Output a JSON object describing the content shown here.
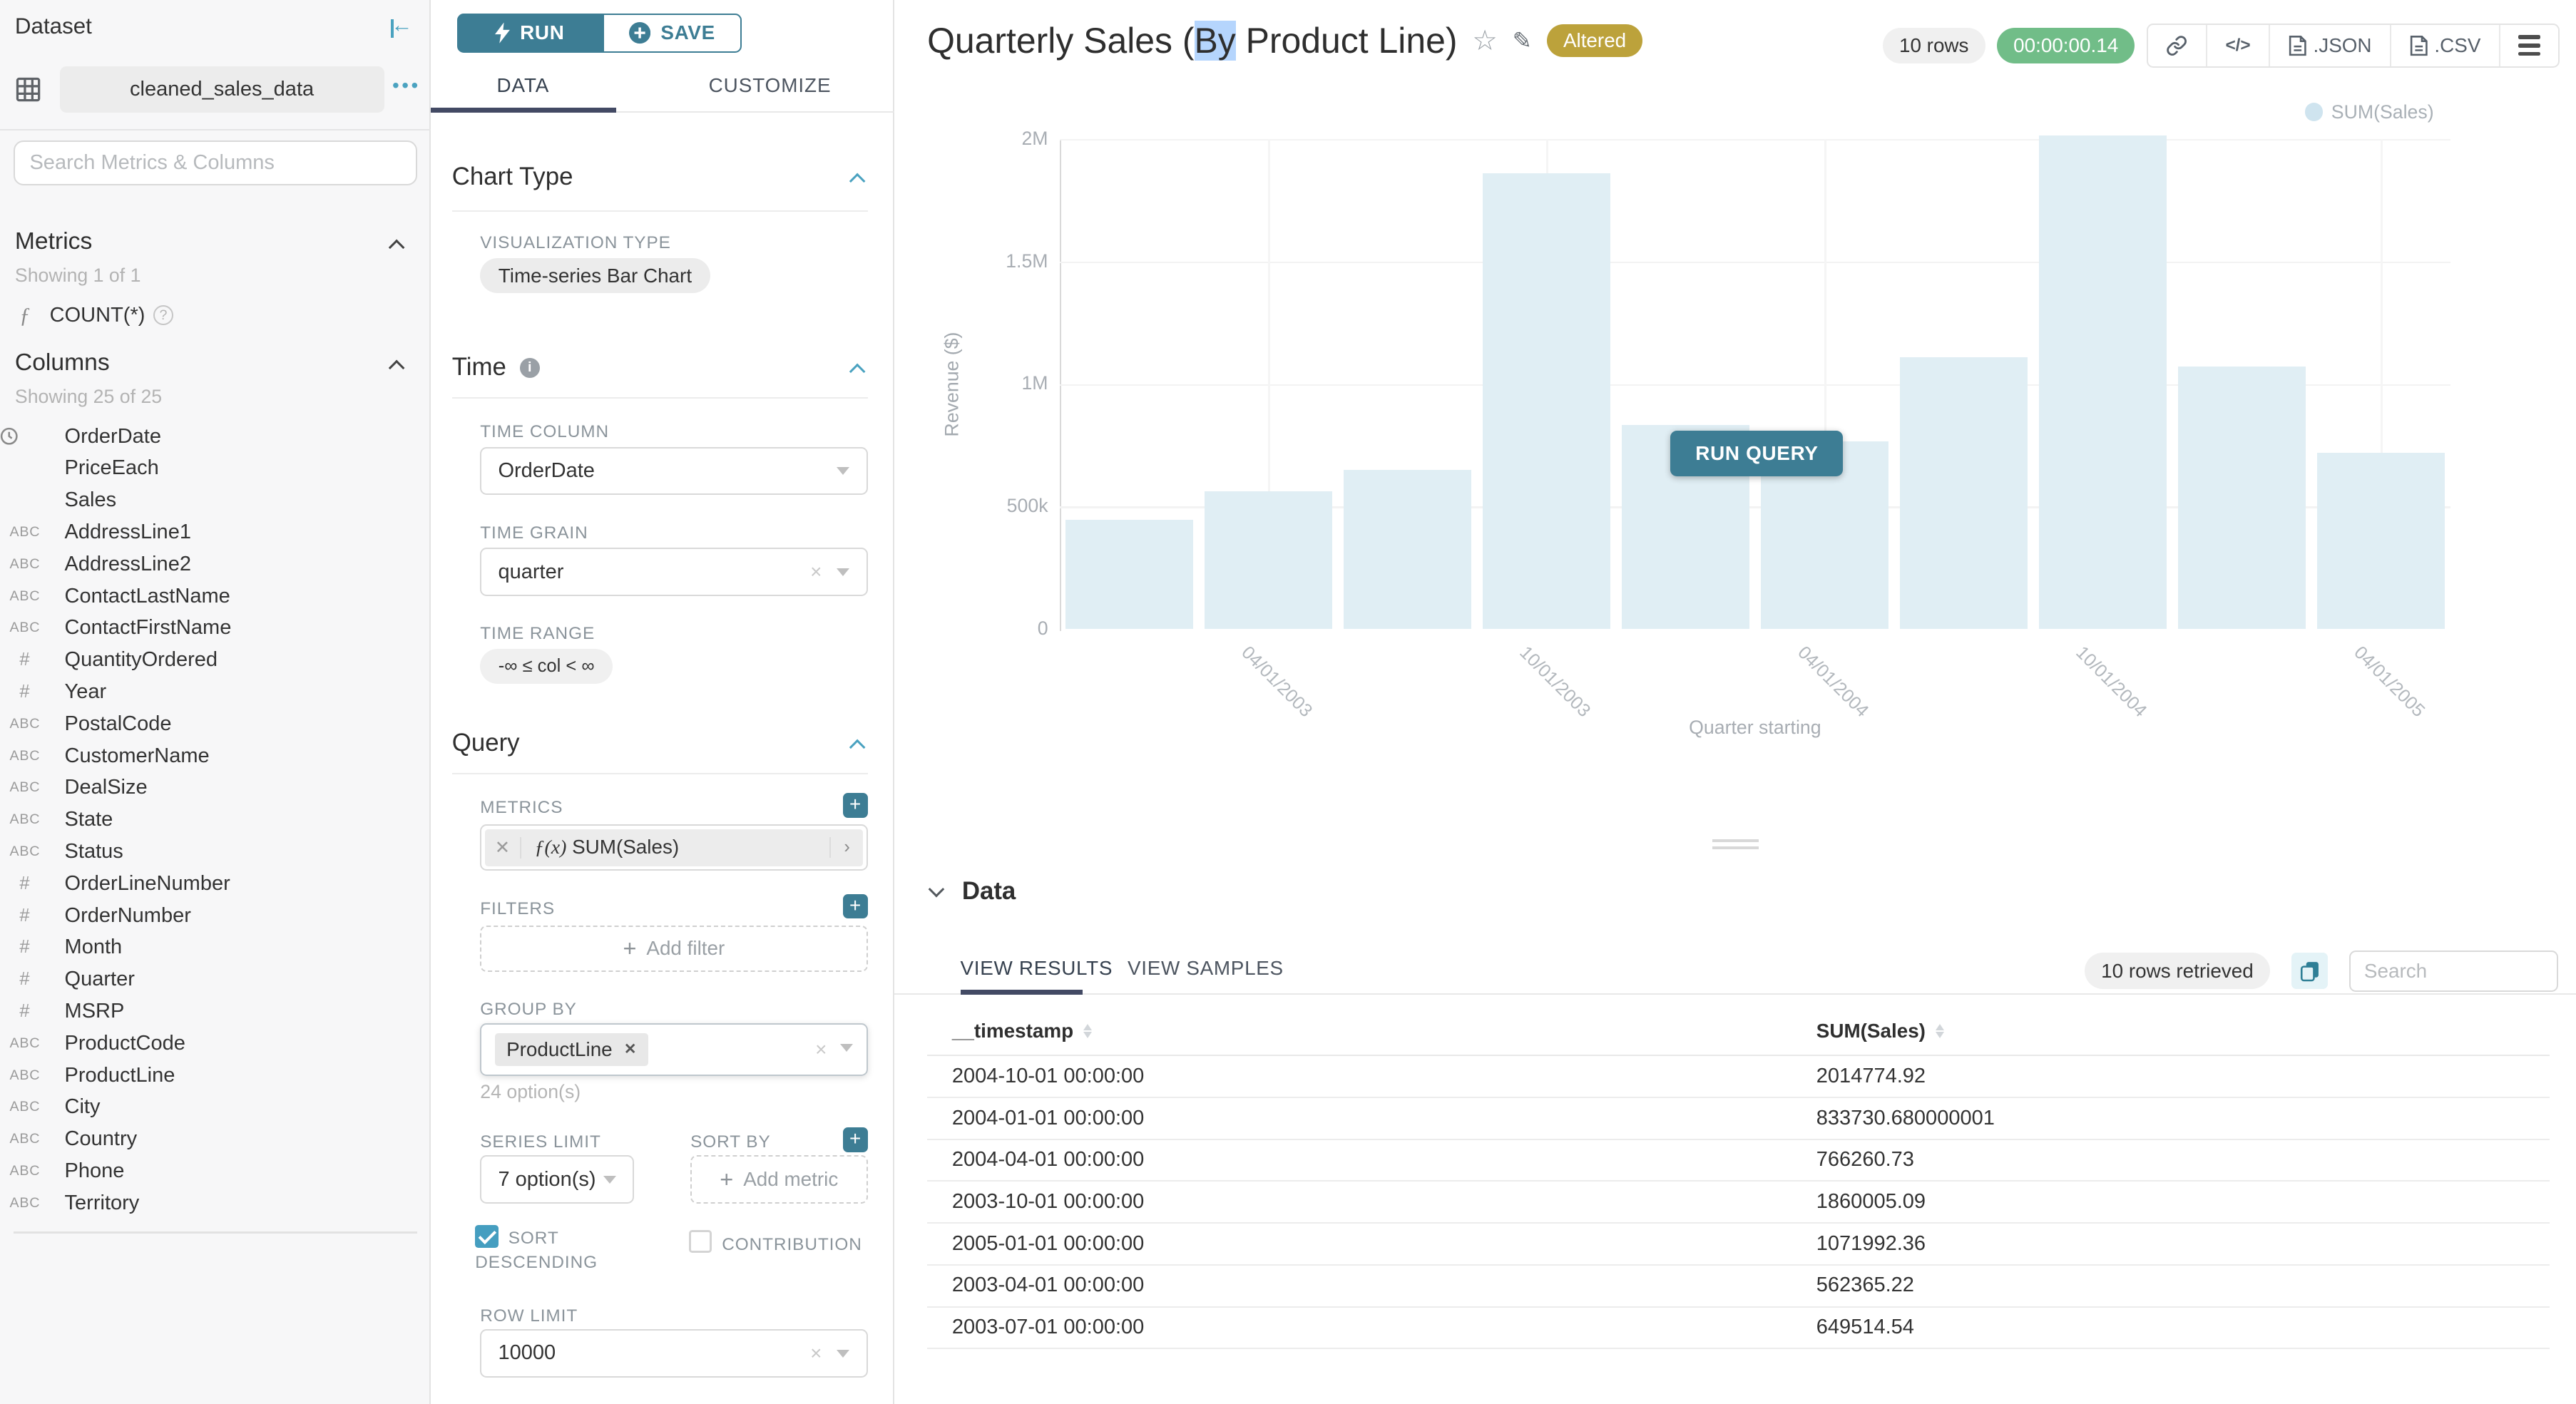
{
  "colors": {
    "accent_teal": "#3d7d94",
    "link_teal": "#4aa2c0",
    "tab_underline": "#434a64",
    "bar_fill": "#e0eef4",
    "legend_dot": "#cfe4ef",
    "altered_badge": "#bca23b",
    "timer_green": "#71bd88",
    "selection_highlight": "#b5d5fd",
    "checkbox_checked": "#459ec0"
  },
  "sidebar": {
    "title": "Dataset",
    "dataset_name": "cleaned_sales_data",
    "more_menu": "•••",
    "search_placeholder": "Search Metrics & Columns",
    "metrics": {
      "title": "Metrics",
      "showing": "Showing 1 of 1",
      "items": [
        {
          "icon": "function",
          "name": "COUNT(*)"
        }
      ]
    },
    "columns": {
      "title": "Columns",
      "showing": "Showing 25 of 25",
      "items": [
        {
          "icon": "clock",
          "name": "OrderDate"
        },
        {
          "icon": "",
          "name": "PriceEach"
        },
        {
          "icon": "",
          "name": "Sales"
        },
        {
          "icon": "abc",
          "name": "AddressLine1"
        },
        {
          "icon": "abc",
          "name": "AddressLine2"
        },
        {
          "icon": "abc",
          "name": "ContactLastName"
        },
        {
          "icon": "abc",
          "name": "ContactFirstName"
        },
        {
          "icon": "#",
          "name": "QuantityOrdered"
        },
        {
          "icon": "#",
          "name": "Year"
        },
        {
          "icon": "abc",
          "name": "PostalCode"
        },
        {
          "icon": "abc",
          "name": "CustomerName"
        },
        {
          "icon": "abc",
          "name": "DealSize"
        },
        {
          "icon": "abc",
          "name": "State"
        },
        {
          "icon": "abc",
          "name": "Status"
        },
        {
          "icon": "#",
          "name": "OrderLineNumber"
        },
        {
          "icon": "#",
          "name": "OrderNumber"
        },
        {
          "icon": "#",
          "name": "Month"
        },
        {
          "icon": "#",
          "name": "Quarter"
        },
        {
          "icon": "#",
          "name": "MSRP"
        },
        {
          "icon": "abc",
          "name": "ProductCode"
        },
        {
          "icon": "abc",
          "name": "ProductLine"
        },
        {
          "icon": "abc",
          "name": "City"
        },
        {
          "icon": "abc",
          "name": "Country"
        },
        {
          "icon": "abc",
          "name": "Phone"
        },
        {
          "icon": "abc",
          "name": "Territory"
        }
      ]
    }
  },
  "controls": {
    "run_label": "RUN",
    "save_label": "SAVE",
    "tabs": {
      "data": "DATA",
      "customize": "CUSTOMIZE"
    },
    "chart_type": {
      "title": "Chart Type",
      "viz_label": "VISUALIZATION TYPE",
      "viz_value": "Time-series Bar Chart"
    },
    "time": {
      "title": "Time",
      "column_label": "TIME COLUMN",
      "column_value": "OrderDate",
      "grain_label": "TIME GRAIN",
      "grain_value": "quarter",
      "range_label": "TIME RANGE",
      "range_value": "-∞ ≤ col < ∞"
    },
    "query": {
      "title": "Query",
      "metrics_label": "METRICS",
      "metric_fn": "ƒ(x)",
      "metric_value": "SUM(Sales)",
      "filters_label": "FILTERS",
      "add_filter_label": "Add filter",
      "group_by_label": "GROUP BY",
      "group_by_value": "ProductLine",
      "group_by_hint": "24 option(s)",
      "series_limit_label": "SERIES LIMIT",
      "series_limit_value": "7 option(s)",
      "sort_by_label": "SORT BY",
      "add_metric_label": "Add metric",
      "sort_descending_label": "SORT DESCENDING",
      "contribution_label": "CONTRIBUTION",
      "row_limit_label": "ROW LIMIT",
      "row_limit_value": "10000"
    }
  },
  "header": {
    "title_before": "Quarterly Sales (",
    "title_highlight": "By",
    "title_after": " Product Line)",
    "badge": "Altered",
    "rows_pill": "10 rows",
    "timer": "00:00:00.14",
    "json_label": ".JSON",
    "csv_label": ".CSV"
  },
  "canvas": {
    "legend": "SUM(Sales)",
    "ylabel": "Revenue ($)",
    "xlabel": "Quarter starting",
    "run_query_label": "RUN QUERY"
  },
  "chart_data": {
    "type": "bar",
    "title": "Quarterly Sales (By Product Line)",
    "series_name": "SUM(Sales)",
    "x": [
      "2003-01-01",
      "2003-04-01",
      "2003-07-01",
      "2003-10-01",
      "2004-01-01",
      "2004-04-01",
      "2004-07-01",
      "2004-10-01",
      "2005-01-01",
      "2005-04-01"
    ],
    "values": [
      445094.69,
      562365.22,
      649514.54,
      1860005.09,
      833730.68,
      766260.73,
      1109396.27,
      2014774.92,
      1071992.36,
      719494.35
    ],
    "xlabel": "Quarter starting",
    "ylabel": "Revenue ($)",
    "ylim": [
      0,
      2000000
    ],
    "y_tick_labels": [
      "2M",
      "1.5M",
      "1M",
      "500k",
      "0"
    ],
    "x_tick_labels": [
      "04/01/2003",
      "10/01/2003",
      "04/01/2004",
      "10/01/2004",
      "04/01/2005"
    ],
    "legend_position": "top-right",
    "grid": true
  },
  "data_panel": {
    "title": "Data",
    "tabs": {
      "results": "VIEW RESULTS",
      "samples": "VIEW SAMPLES"
    },
    "rows_pill": "10 rows retrieved",
    "search_placeholder": "Search",
    "table": {
      "columns": [
        "__timestamp",
        "SUM(Sales)"
      ],
      "rows": [
        [
          "2004-10-01 00:00:00",
          "2014774.92"
        ],
        [
          "2004-01-01 00:00:00",
          "833730.680000001"
        ],
        [
          "2004-04-01 00:00:00",
          "766260.73"
        ],
        [
          "2003-10-01 00:00:00",
          "1860005.09"
        ],
        [
          "2005-01-01 00:00:00",
          "1071992.36"
        ],
        [
          "2003-04-01 00:00:00",
          "562365.22"
        ],
        [
          "2003-07-01 00:00:00",
          "649514.54"
        ]
      ]
    }
  }
}
